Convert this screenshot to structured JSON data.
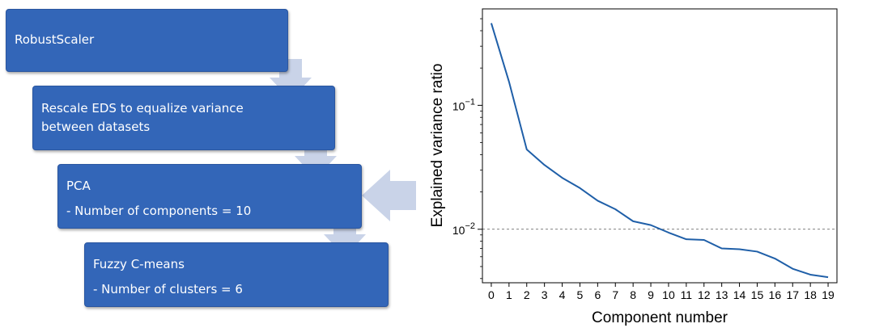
{
  "flow": {
    "steps": [
      {
        "lines": [
          "RobustScaler"
        ]
      },
      {
        "lines": [
          "Rescale EDS to equalize variance",
          "between datasets"
        ]
      },
      {
        "lines": [
          "PCA",
          "- Number of components = 10"
        ]
      },
      {
        "lines": [
          "Fuzzy C-means",
          "- Number of clusters = 6"
        ]
      }
    ],
    "colors": {
      "box": "#3366b8",
      "arrow": "#c9d3e8"
    }
  },
  "chart_data": {
    "type": "line",
    "xlabel": "Component number",
    "ylabel": "Explained variance ratio",
    "yscale": "log",
    "ylim": [
      0.0037,
      0.6
    ],
    "xlim": [
      -0.5,
      19.5
    ],
    "x": [
      0,
      1,
      2,
      3,
      4,
      5,
      6,
      7,
      8,
      9,
      10,
      11,
      12,
      13,
      14,
      15,
      16,
      17,
      18,
      19
    ],
    "yticks": [
      {
        "value": 0.1,
        "base": "10",
        "exp": "−1"
      },
      {
        "value": 0.01,
        "base": "10",
        "exp": "−2"
      }
    ],
    "series": [
      {
        "values": [
          0.46,
          0.155,
          0.044,
          0.033,
          0.026,
          0.0215,
          0.017,
          0.0145,
          0.0116,
          0.0108,
          0.0094,
          0.0083,
          0.0082,
          0.007,
          0.0069,
          0.0066,
          0.0058,
          0.0048,
          0.0043,
          0.0041
        ],
        "color": "#1f5fa8"
      }
    ],
    "reference_line": {
      "y": 0.01,
      "style": "dashed"
    }
  }
}
